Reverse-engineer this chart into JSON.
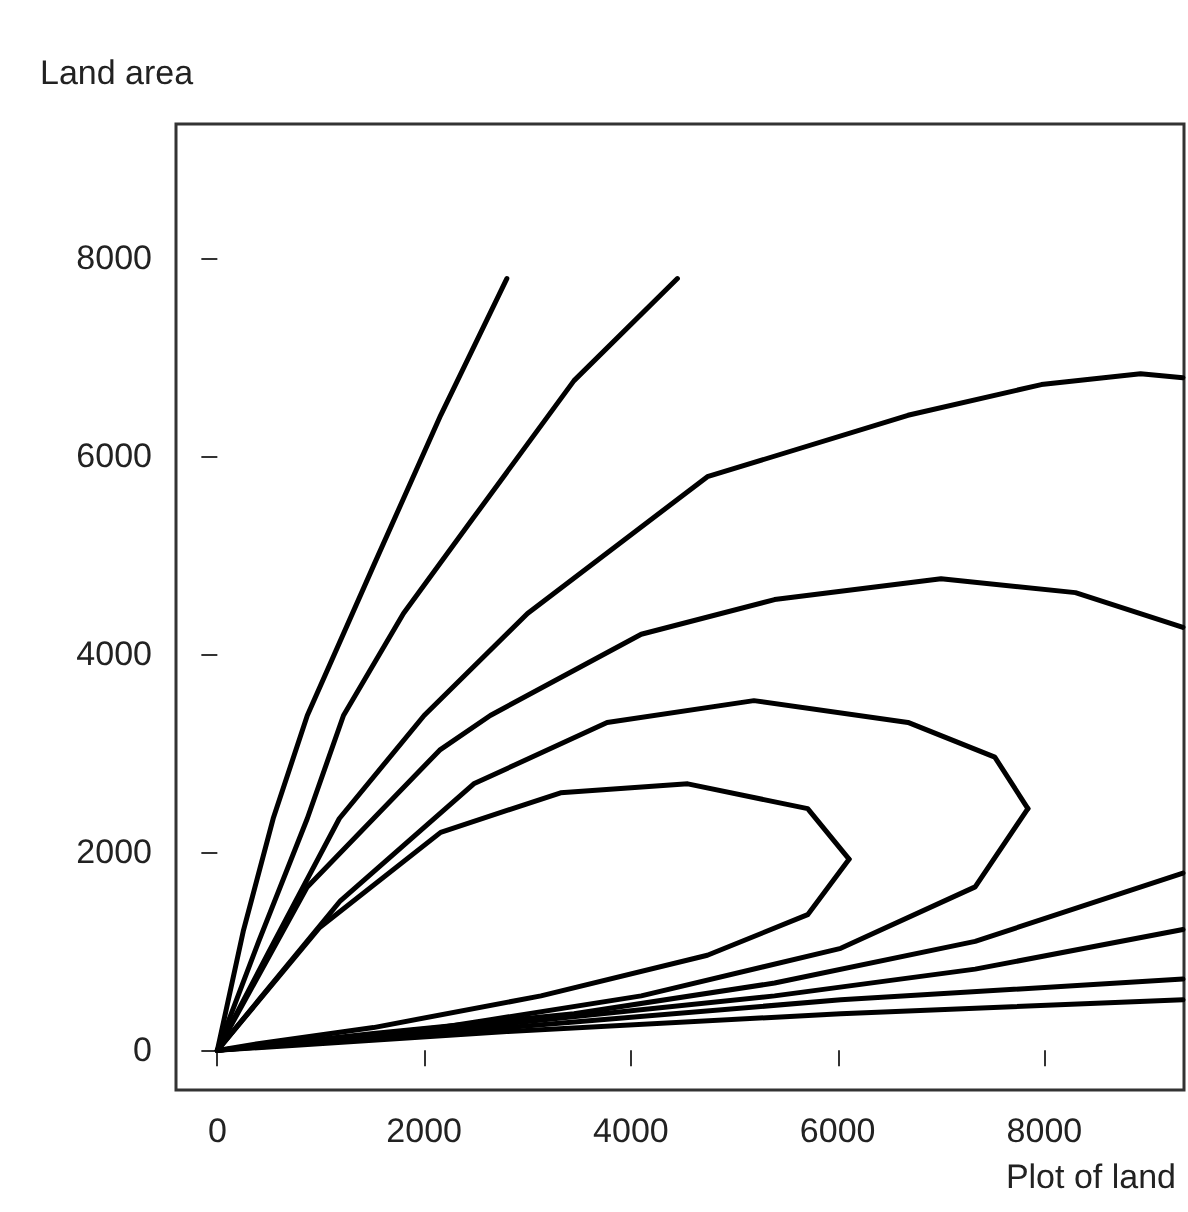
{
  "chart_data": {
    "type": "line",
    "xlabel": "Plot of land",
    "ylabel": "Land area",
    "xlim": [
      -400,
      9350
    ],
    "ylim": [
      -400,
      9350
    ],
    "xticks": [
      0,
      2000,
      4000,
      6000,
      8000
    ],
    "yticks": [
      0,
      2000,
      4000,
      6000,
      8000
    ],
    "grid": false,
    "marker": "none",
    "line_style": "solid",
    "series": [
      {
        "color": "#000000",
        "x": [
          0,
          250,
          540,
          870,
          1510,
          2160,
          2800
        ],
        "values": [
          0,
          1200,
          2340,
          3380,
          4890,
          6410,
          7790
        ]
      },
      {
        "color": "#000000",
        "x": [
          0,
          400,
          870,
          1220,
          1800,
          2480,
          3450,
          4450
        ],
        "values": [
          0,
          1100,
          2340,
          3380,
          4410,
          5380,
          6760,
          7790
        ]
      },
      {
        "color": "#000000",
        "x": [
          0,
          500,
          1180,
          2000,
          3000,
          4740,
          6680,
          7970,
          8930,
          9340
        ],
        "values": [
          0,
          1000,
          2340,
          3380,
          4410,
          5790,
          6410,
          6720,
          6830,
          6790
        ]
      },
      {
        "color": "#000000",
        "x": [
          0,
          870,
          2150,
          2640,
          4100,
          5390,
          7000,
          8300,
          9340
        ],
        "values": [
          0,
          1650,
          3030,
          3380,
          4200,
          4550,
          4760,
          4620,
          4270
        ]
      },
      {
        "color": "#000000",
        "x": [
          0,
          1190,
          2480,
          3770,
          5190,
          6680,
          7520,
          7840
        ],
        "values": [
          0,
          1510,
          2690,
          3310,
          3530,
          3310,
          2960,
          2440
        ]
      },
      {
        "color": "#000000",
        "x": [
          0,
          540,
          2160,
          4100,
          6030,
          7330,
          7840
        ],
        "values": [
          0,
          60,
          230,
          550,
          1030,
          1650,
          2440
        ]
      },
      {
        "color": "#000000",
        "x": [
          0,
          990,
          2160,
          3320,
          4550,
          5710,
          6110
        ],
        "values": [
          0,
          1240,
          2200,
          2600,
          2690,
          2440,
          1930
        ]
      },
      {
        "color": "#000000",
        "x": [
          0,
          350,
          1510,
          3130,
          4740,
          5710,
          6110
        ],
        "values": [
          0,
          60,
          230,
          550,
          960,
          1370,
          1930
        ]
      },
      {
        "color": "#000000",
        "x": [
          0,
          1510,
          3450,
          5390,
          7330,
          9340
        ],
        "values": [
          0,
          170,
          370,
          680,
          1100,
          1790
        ]
      },
      {
        "color": "#000000",
        "x": [
          0,
          2800,
          5390,
          7330,
          9340
        ],
        "values": [
          0,
          270,
          550,
          820,
          1220
        ]
      },
      {
        "color": "#000000",
        "x": [
          0,
          2800,
          6030,
          9340
        ],
        "values": [
          0,
          230,
          510,
          720
        ]
      },
      {
        "color": "#000000",
        "x": [
          0,
          2800,
          6030,
          9340
        ],
        "values": [
          0,
          190,
          370,
          510
        ]
      }
    ]
  }
}
